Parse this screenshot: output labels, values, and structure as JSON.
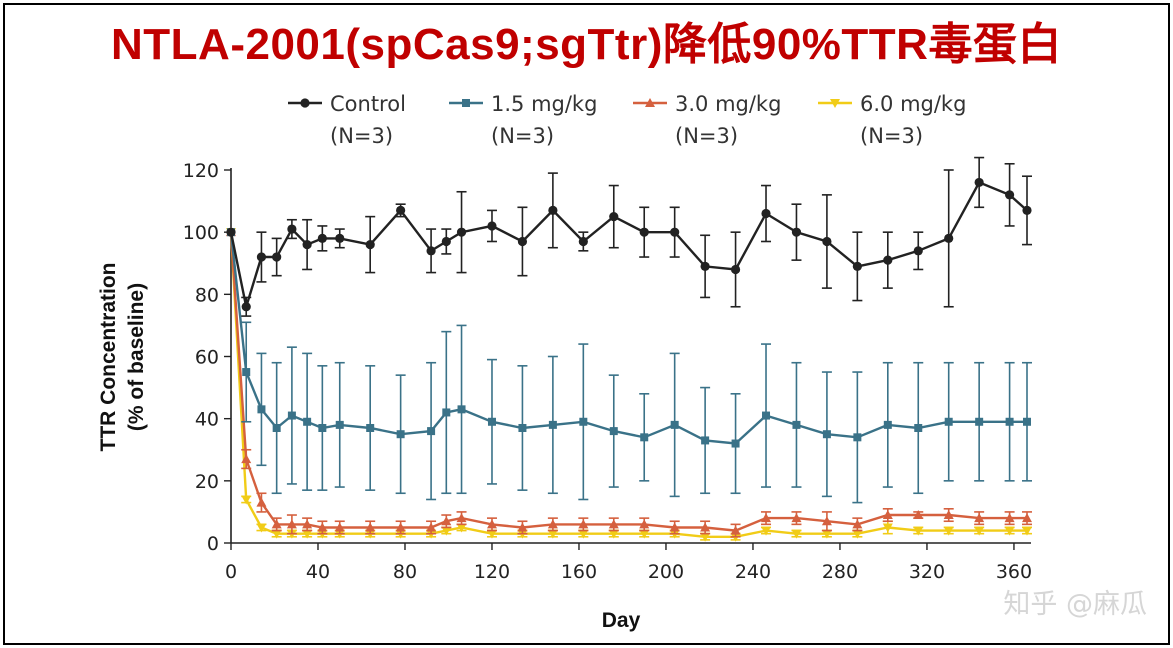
{
  "header": {
    "title": "NTLA-2001(spCas9;sgTtr)降低90%TTR毒蛋白"
  },
  "watermark": "知乎 @麻瓜",
  "colors": {
    "title": "#c00000",
    "control": "#222222",
    "dose_1_5": "#3a7288",
    "dose_3_0": "#d5603e",
    "dose_6_0": "#f1cc17"
  },
  "chart_data": {
    "type": "line",
    "title": "",
    "xlabel": "Day",
    "ylabel": "TTR Concentration (% of baseline)",
    "xlim": [
      0,
      366
    ],
    "ylim": [
      0,
      120
    ],
    "xticks": [
      0,
      40,
      80,
      120,
      160,
      200,
      240,
      280,
      320,
      360
    ],
    "yticks": [
      0,
      20,
      40,
      60,
      80,
      100,
      120
    ],
    "grid": false,
    "legend_position": "top",
    "series": [
      {
        "name": "Control",
        "n_label": "(N=3)",
        "marker": "circle",
        "color": "#222222",
        "x": [
          0,
          7,
          14,
          21,
          28,
          35,
          42,
          50,
          64,
          78,
          92,
          99,
          106,
          120,
          134,
          148,
          162,
          176,
          190,
          204,
          218,
          232,
          246,
          260,
          274,
          288,
          302,
          316,
          330,
          344,
          358,
          366
        ],
        "y": [
          100,
          76,
          92,
          92,
          101,
          96,
          98,
          98,
          96,
          107,
          94,
          97,
          100,
          102,
          97,
          107,
          97,
          105,
          100,
          100,
          89,
          88,
          106,
          100,
          97,
          89,
          91,
          94,
          98,
          116,
          112,
          107
        ],
        "err": [
          0,
          3,
          8,
          6,
          3,
          8,
          4,
          3,
          9,
          2,
          7,
          4,
          13,
          5,
          11,
          12,
          3,
          10,
          8,
          8,
          10,
          12,
          9,
          9,
          15,
          11,
          9,
          6,
          22,
          8,
          10,
          11
        ]
      },
      {
        "name": "1.5 mg/kg",
        "n_label": "(N=3)",
        "marker": "square",
        "color": "#3a7288",
        "x": [
          0,
          7,
          14,
          21,
          28,
          35,
          42,
          50,
          64,
          78,
          92,
          99,
          106,
          120,
          134,
          148,
          162,
          176,
          190,
          204,
          218,
          232,
          246,
          260,
          274,
          288,
          302,
          316,
          330,
          344,
          358,
          366
        ],
        "y": [
          100,
          55,
          43,
          37,
          41,
          39,
          37,
          38,
          37,
          35,
          36,
          42,
          43,
          39,
          37,
          38,
          39,
          36,
          34,
          38,
          33,
          32,
          41,
          38,
          35,
          34,
          38,
          37,
          39,
          39,
          39,
          39
        ],
        "err": [
          0,
          16,
          18,
          21,
          22,
          22,
          20,
          20,
          20,
          19,
          22,
          26,
          27,
          20,
          20,
          22,
          25,
          18,
          14,
          23,
          17,
          16,
          23,
          20,
          20,
          21,
          20,
          21,
          19,
          19,
          19,
          19
        ]
      },
      {
        "name": "3.0 mg/kg",
        "n_label": "(N=3)",
        "marker": "triangle-up",
        "color": "#d5603e",
        "x": [
          0,
          7,
          14,
          21,
          28,
          35,
          42,
          50,
          64,
          78,
          92,
          99,
          106,
          120,
          134,
          148,
          162,
          176,
          190,
          204,
          218,
          232,
          246,
          260,
          274,
          288,
          302,
          316,
          330,
          344,
          358,
          366
        ],
        "y": [
          100,
          27,
          13,
          6,
          6,
          6,
          5,
          5,
          5,
          5,
          5,
          7,
          8,
          6,
          5,
          6,
          6,
          6,
          6,
          5,
          5,
          4,
          8,
          8,
          7,
          6,
          9,
          9,
          9,
          8,
          8,
          8
        ],
        "err": [
          0,
          3,
          3,
          2,
          3,
          2,
          2,
          2,
          2,
          2,
          2,
          2,
          2,
          2,
          2,
          2,
          2,
          2,
          2,
          2,
          2,
          2,
          2,
          2,
          3,
          2,
          2,
          1,
          2,
          2,
          2,
          2
        ]
      },
      {
        "name": "6.0 mg/kg",
        "n_label": "(N=3)",
        "marker": "triangle-down",
        "color": "#f1cc17",
        "x": [
          0,
          7,
          14,
          21,
          28,
          35,
          42,
          50,
          64,
          78,
          92,
          99,
          106,
          120,
          134,
          148,
          162,
          176,
          190,
          204,
          218,
          232,
          246,
          260,
          274,
          288,
          302,
          316,
          330,
          344,
          358,
          366
        ],
        "y": [
          100,
          14,
          5,
          3,
          3,
          3,
          3,
          3,
          3,
          3,
          3,
          4,
          5,
          3,
          3,
          3,
          3,
          3,
          3,
          3,
          2,
          2,
          4,
          3,
          3,
          3,
          5,
          4,
          4,
          4,
          4,
          4
        ],
        "err": [
          0,
          1,
          1,
          1,
          1,
          1,
          1,
          1,
          1,
          1,
          1,
          1,
          1,
          1,
          1,
          1,
          1,
          1,
          1,
          1,
          1,
          1,
          1,
          1,
          1,
          1,
          2,
          1,
          1,
          1,
          1,
          1
        ]
      }
    ]
  }
}
